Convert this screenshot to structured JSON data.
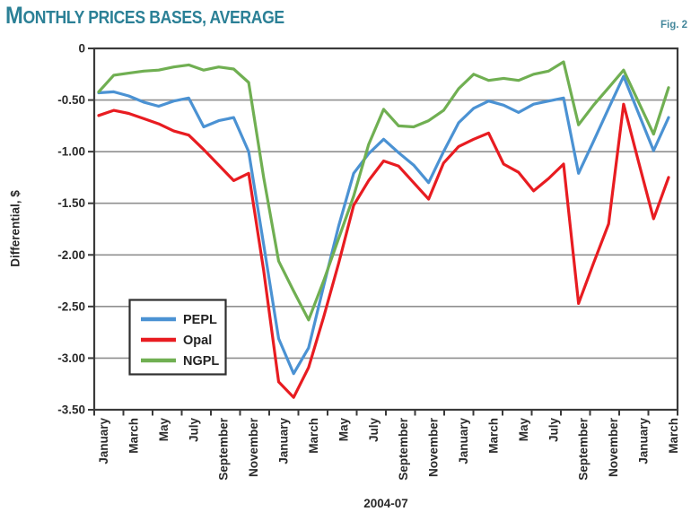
{
  "header": {
    "title_first_letter": "M",
    "title_rest": "ONTHLY PRICES BASES, AVERAGE",
    "title_color": "#2b8096",
    "figure_label": "Fig. 2"
  },
  "chart_data": {
    "type": "line",
    "title": "Monthly prices bases, average",
    "xlabel": "2004-07",
    "ylabel": "Differential, $",
    "ylim": [
      -3.5,
      0
    ],
    "grid": true,
    "x_range_note": "monthly points, January 2004 through March 2007 (39 points)",
    "ytick_values": [
      0,
      -0.5,
      -1.0,
      -1.5,
      -2.0,
      -2.5,
      -3.0,
      -3.5
    ],
    "ytick_labels": [
      "0",
      "-0.50",
      "-1.00",
      "-1.50",
      "-2.00",
      "-2.50",
      "-3.00",
      "-3.50"
    ],
    "x_tick_labels": [
      "January",
      "March",
      "May",
      "July",
      "September",
      "November",
      "January",
      "March",
      "May",
      "July",
      "September",
      "November",
      "January",
      "March",
      "May",
      "July",
      "September",
      "November",
      "January",
      "March"
    ],
    "legend": {
      "position": "inside-left",
      "entries": [
        {
          "label": "PEPL",
          "color": "#4b92d3"
        },
        {
          "label": "Opal",
          "color": "#e81c21"
        },
        {
          "label": "NGPL",
          "color": "#70af52"
        }
      ]
    },
    "series": [
      {
        "name": "PEPL",
        "color": "#4b92d3",
        "values": [
          -0.43,
          -0.42,
          -0.46,
          -0.52,
          -0.56,
          -0.51,
          -0.48,
          -0.76,
          -0.7,
          -0.67,
          -1.0,
          -1.9,
          -2.81,
          -3.15,
          -2.9,
          -2.3,
          -1.72,
          -1.21,
          -1.02,
          -0.88,
          -1.01,
          -1.13,
          -1.3,
          -1.0,
          -0.72,
          -0.58,
          -0.51,
          -0.55,
          -0.62,
          -0.54,
          -0.51,
          -0.48,
          -1.21,
          -0.9,
          -0.58,
          -0.27,
          -0.63,
          -0.99,
          -0.67
        ]
      },
      {
        "name": "Opal",
        "color": "#e81c21",
        "values": [
          -0.65,
          -0.6,
          -0.63,
          -0.68,
          -0.73,
          -0.8,
          -0.84,
          -0.98,
          -1.13,
          -1.28,
          -1.21,
          -2.15,
          -3.23,
          -3.38,
          -3.09,
          -2.6,
          -2.08,
          -1.52,
          -1.28,
          -1.09,
          -1.14,
          -1.3,
          -1.46,
          -1.11,
          -0.95,
          -0.88,
          -0.82,
          -1.12,
          -1.2,
          -1.38,
          -1.26,
          -1.12,
          -2.47,
          -2.08,
          -1.7,
          -0.54,
          -1.1,
          -1.65,
          -1.25
        ]
      },
      {
        "name": "NGPL",
        "color": "#70af52",
        "values": [
          -0.42,
          -0.26,
          -0.24,
          -0.22,
          -0.21,
          -0.18,
          -0.16,
          -0.21,
          -0.18,
          -0.2,
          -0.33,
          -1.25,
          -2.06,
          -2.35,
          -2.63,
          -2.25,
          -1.84,
          -1.43,
          -0.93,
          -0.59,
          -0.75,
          -0.76,
          -0.7,
          -0.6,
          -0.39,
          -0.25,
          -0.31,
          -0.29,
          -0.31,
          -0.25,
          -0.22,
          -0.13,
          -0.74,
          -0.55,
          -0.38,
          -0.21,
          -0.52,
          -0.83,
          -0.38
        ]
      }
    ],
    "style": {
      "plot_border_color": "#3a3a3a",
      "gridline_color": "#8f8f8f",
      "tick_text_color": "#2a2a2a",
      "background": "#ffffff"
    }
  }
}
